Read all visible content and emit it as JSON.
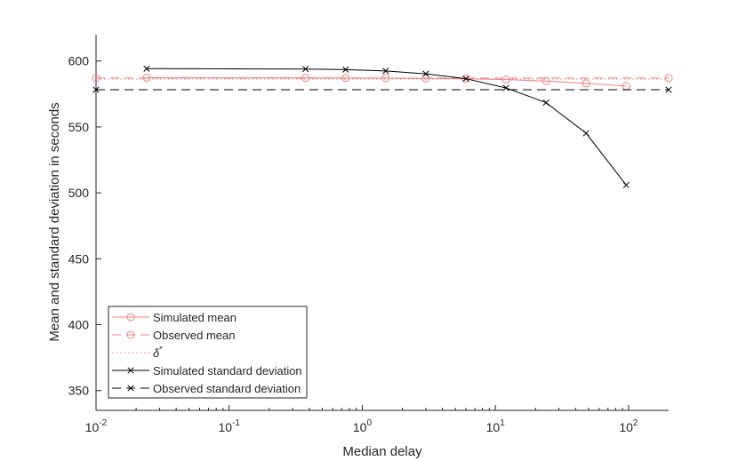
{
  "chart_data": {
    "type": "line",
    "xscale": "log",
    "xlabel": "Median delay",
    "ylabel": "Mean and standard deviation in seconds",
    "xlim": [
      0.01,
      200
    ],
    "ylim": [
      335,
      620
    ],
    "x_ticks": [
      {
        "value": 0.01,
        "base": "10",
        "exp": "-2"
      },
      {
        "value": 0.1,
        "base": "10",
        "exp": "-1"
      },
      {
        "value": 1,
        "base": "10",
        "exp": "0"
      },
      {
        "value": 10,
        "base": "10",
        "exp": "1"
      },
      {
        "value": 100,
        "base": "10",
        "exp": "2"
      }
    ],
    "y_ticks": [
      350,
      400,
      450,
      500,
      550,
      600
    ],
    "grid": false,
    "legend_position": "bottom-left",
    "series": [
      {
        "name": "Simulated mean",
        "color": "#f08080",
        "line": "solid",
        "marker": "circle",
        "x": [
          0.024,
          0.375,
          0.75,
          1.5,
          3,
          6,
          12,
          24,
          48,
          96
        ],
        "y": [
          587.3,
          587.2,
          587.1,
          587.0,
          586.8,
          586.6,
          585.9,
          584.8,
          583.0,
          581.0
        ]
      },
      {
        "name": "Observed mean",
        "color": "#f08080",
        "line": "dashed",
        "marker": "circle",
        "x": [
          0.01,
          200
        ],
        "y": [
          587.1,
          587.1
        ]
      },
      {
        "name": "δ*",
        "color": "#f08080",
        "line": "dotted",
        "marker": "none",
        "x": [
          0.01,
          200
        ],
        "y": [
          586.3,
          586.3
        ]
      },
      {
        "name": "Simulated standard deviation",
        "color": "#000000",
        "line": "solid",
        "marker": "x",
        "x": [
          0.024,
          0.375,
          0.75,
          1.5,
          3,
          6,
          12,
          24,
          48,
          96
        ],
        "y": [
          594.2,
          593.9,
          593.5,
          592.5,
          590.3,
          586.6,
          579.6,
          568.4,
          545.2,
          505.9
        ]
      },
      {
        "name": "Observed standard deviation",
        "color": "#000000",
        "line": "dashed",
        "marker": "x",
        "x": [
          0.01,
          200
        ],
        "y": [
          578.2,
          578.2
        ]
      }
    ]
  }
}
